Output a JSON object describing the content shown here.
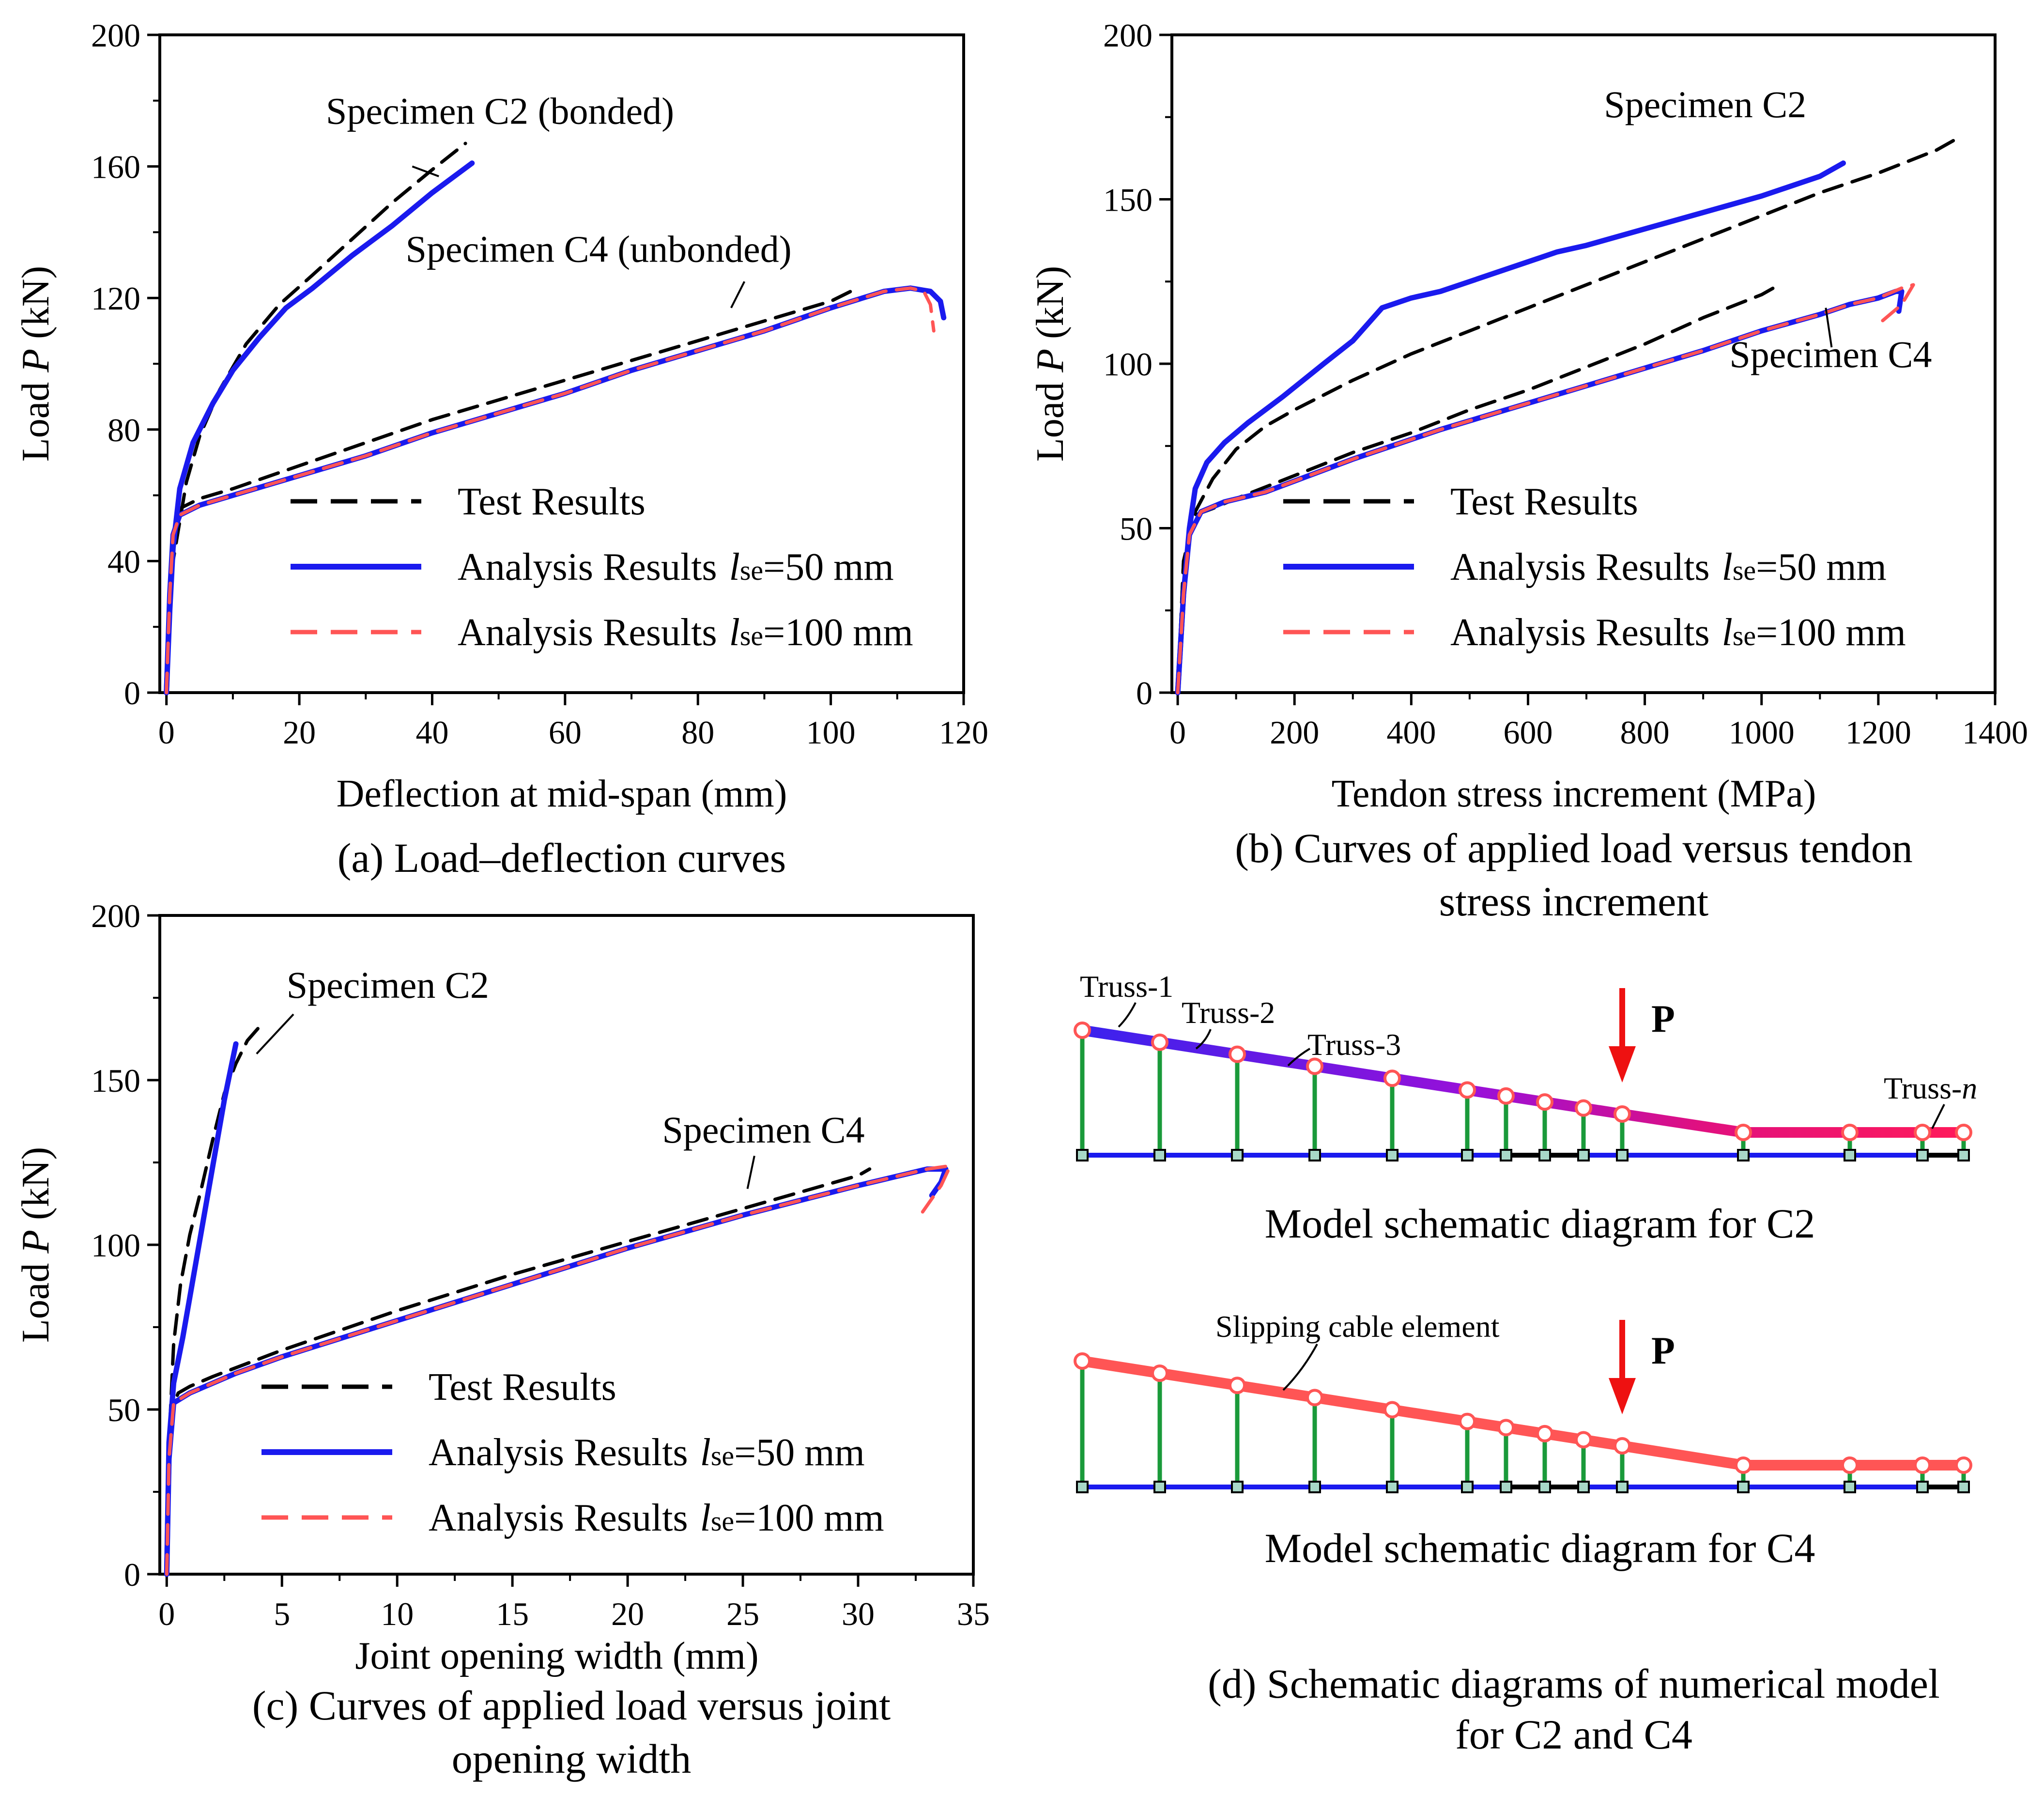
{
  "colors": {
    "test": "#000000",
    "a50": "#1a1aee",
    "a100": "#ff5555",
    "post": "#1a9a3a",
    "beam": "#1a1aee",
    "node": "#a8d8c8",
    "arrow": "#ee1111"
  },
  "legend": {
    "test": "Test Results",
    "a50_prefix": "Analysis Results",
    "a50_l": "l",
    "a50_sub": "se",
    "a50_val": "=50 mm",
    "a100_prefix": "Analysis Results",
    "a100_l": "l",
    "a100_sub": "se",
    "a100_val": "=100 mm"
  },
  "chart_data": [
    {
      "id": "a",
      "type": "line",
      "caption": "(a) Load–deflection curves",
      "xlabel": "Deflection at mid-span (mm)",
      "ylabel_prefix": "Load ",
      "ylabel_var": "P",
      "ylabel_suffix": " (kN)",
      "xlim": [
        -1,
        120
      ],
      "ylim": [
        0,
        200
      ],
      "xticks": [
        0,
        20,
        40,
        60,
        80,
        100,
        120
      ],
      "yticks": [
        0,
        40,
        80,
        120,
        160,
        200
      ],
      "annotations": [
        {
          "text": "Specimen C2 (bonded)",
          "x": 24,
          "y": 173,
          "lx1": 37,
          "ly1": 160,
          "lx2": 41,
          "ly2": 157
        },
        {
          "text": "Specimen C4 (unbonded)",
          "x": 36,
          "y": 131,
          "lx1": 87,
          "ly1": 125,
          "lx2": 85,
          "ly2": 117
        }
      ],
      "series": [
        {
          "name": "Test Results C2",
          "style": "test",
          "x": [
            0,
            1,
            3,
            5,
            8,
            12,
            17,
            22,
            28,
            34,
            40,
            45
          ],
          "y": [
            0,
            40,
            64,
            78,
            92,
            106,
            118,
            127,
            138,
            149,
            159,
            167
          ]
        },
        {
          "name": "Test Results C4",
          "style": "test",
          "x": [
            0,
            1,
            2,
            5,
            10,
            20,
            30,
            40,
            50,
            60,
            70,
            80,
            90,
            100,
            104
          ],
          "y": [
            0,
            40,
            56,
            59,
            62,
            69,
            76,
            83,
            89,
            95,
            101,
            107,
            113,
            119,
            123
          ]
        },
        {
          "name": "Analysis C2 lse=50",
          "style": "a50",
          "x": [
            0,
            0.5,
            1,
            2,
            4,
            7,
            10,
            14,
            18,
            22,
            28,
            34,
            40,
            46
          ],
          "y": [
            0,
            25,
            44,
            62,
            76,
            88,
            98,
            108,
            117,
            123,
            133,
            142,
            152,
            161
          ]
        },
        {
          "name": "Analysis C4 lse=50",
          "style": "a50",
          "x": [
            0,
            0.5,
            1,
            2,
            5,
            10,
            20,
            30,
            40,
            50,
            60,
            70,
            80,
            90,
            100,
            108,
            112,
            115,
            116.5,
            117
          ],
          "y": [
            0,
            30,
            48,
            54,
            57,
            60,
            66,
            72,
            79,
            85,
            91,
            98,
            104,
            110,
            117,
            122,
            123,
            122,
            119,
            114
          ]
        },
        {
          "name": "Analysis C4 lse=100",
          "style": "a100",
          "x": [
            0,
            0.5,
            1,
            2,
            5,
            10,
            20,
            30,
            40,
            50,
            60,
            70,
            80,
            90,
            100,
            108,
            112,
            114,
            115,
            115.5
          ],
          "y": [
            0,
            30,
            48,
            54,
            57,
            60,
            66,
            72,
            79,
            85,
            91,
            98,
            104,
            110,
            117,
            122,
            123,
            122,
            118,
            110
          ]
        }
      ]
    },
    {
      "id": "b",
      "type": "line",
      "caption": "(b) Curves of applied load versus tendon",
      "caption2": "stress increment",
      "xlabel": "Tendon stress increment (MPa)",
      "ylabel_prefix": "Load ",
      "ylabel_var": "P",
      "ylabel_suffix": " (kN)",
      "xlim": [
        -10,
        1400
      ],
      "ylim": [
        0,
        200
      ],
      "xticks": [
        0,
        200,
        400,
        600,
        800,
        1000,
        1200,
        1400
      ],
      "yticks": [
        0,
        50,
        100,
        150,
        200
      ],
      "annotations": [
        {
          "text": "Specimen C2",
          "x": 730,
          "y": 175,
          "lx1": 0,
          "ly1": 0,
          "lx2": 0,
          "ly2": 0
        },
        {
          "text": "Specimen C4",
          "x": 945,
          "y": 99,
          "lx1": 1120,
          "ly1": 105,
          "lx2": 1110,
          "ly2": 117
        }
      ],
      "series": [
        {
          "name": "Test Results C2",
          "style": "test",
          "x": [
            0,
            10,
            30,
            60,
            100,
            150,
            200,
            300,
            400,
            500,
            600,
            700,
            800,
            900,
            1000,
            1100,
            1200,
            1300,
            1340
          ],
          "y": [
            0,
            40,
            55,
            65,
            74,
            81,
            86,
            95,
            103,
            110,
            117,
            124,
            131,
            138,
            145,
            152,
            158,
            165,
            169
          ]
        },
        {
          "name": "Test Results C4",
          "style": "test",
          "x": [
            0,
            10,
            30,
            60,
            100,
            200,
            300,
            400,
            500,
            600,
            700,
            800,
            900,
            1000,
            1030
          ],
          "y": [
            0,
            40,
            54,
            56,
            59,
            66,
            73,
            79,
            86,
            92,
            99,
            106,
            114,
            121,
            124
          ]
        },
        {
          "name": "Analysis C2 lse=50",
          "style": "a50",
          "x": [
            0,
            10,
            20,
            30,
            50,
            80,
            120,
            180,
            250,
            300,
            350,
            400,
            450,
            500,
            600,
            650,
            700,
            800,
            900,
            1000,
            1100,
            1140
          ],
          "y": [
            0,
            30,
            50,
            62,
            70,
            76,
            82,
            90,
            100,
            107,
            117,
            120,
            122,
            125,
            131,
            134,
            136,
            141,
            146,
            151,
            157,
            161
          ]
        },
        {
          "name": "Analysis C4 lse=50",
          "style": "a50",
          "x": [
            0,
            10,
            20,
            40,
            80,
            150,
            300,
            450,
            600,
            750,
            900,
            1000,
            1100,
            1150,
            1200,
            1230,
            1240,
            1235
          ],
          "y": [
            0,
            30,
            48,
            55,
            58,
            61,
            71,
            80,
            88,
            96,
            104,
            110,
            115,
            118,
            120,
            122,
            122,
            116
          ]
        },
        {
          "name": "Analysis C4 lse=100",
          "style": "a100",
          "x": [
            0,
            10,
            20,
            40,
            80,
            150,
            300,
            450,
            600,
            750,
            900,
            1000,
            1100,
            1150,
            1200,
            1240,
            1260,
            1240,
            1200
          ],
          "y": [
            0,
            30,
            48,
            55,
            58,
            61,
            71,
            80,
            88,
            96,
            104,
            110,
            115,
            118,
            120,
            123,
            124,
            118,
            112
          ]
        }
      ]
    },
    {
      "id": "c",
      "type": "line",
      "caption": "(c)  Curves of applied load versus joint",
      "caption2": "opening  width",
      "xlabel": "Joint opening width (mm)",
      "ylabel_prefix": "Load ",
      "ylabel_var": "P",
      "ylabel_suffix": " (kN)",
      "xlim": [
        -0.3,
        35
      ],
      "ylim": [
        0,
        200
      ],
      "xticks": [
        0,
        5,
        10,
        15,
        20,
        25,
        30,
        35
      ],
      "yticks": [
        0,
        50,
        100,
        150,
        200
      ],
      "annotations": [
        {
          "text": "Specimen C2",
          "x": 5.2,
          "y": 175,
          "lx1": 5.5,
          "ly1": 170,
          "lx2": 3.9,
          "ly2": 158
        },
        {
          "text": "Specimen C4",
          "x": 21.5,
          "y": 131,
          "lx1": 25.5,
          "ly1": 127,
          "lx2": 25.2,
          "ly2": 117
        }
      ],
      "series": [
        {
          "name": "Test Results C2",
          "style": "test",
          "x": [
            0,
            0.1,
            0.3,
            0.6,
            1.0,
            1.5,
            2.0,
            2.5,
            3.0,
            3.5,
            4.0
          ],
          "y": [
            0,
            40,
            70,
            88,
            103,
            117,
            132,
            146,
            155,
            162,
            166
          ]
        },
        {
          "name": "Test Results C4",
          "style": "test",
          "x": [
            0,
            0.2,
            0.5,
            1,
            2,
            5,
            10,
            15,
            20,
            25,
            30,
            30.5
          ],
          "y": [
            0,
            50,
            55,
            57,
            60,
            68,
            80,
            91,
            101,
            111,
            121,
            123
          ]
        },
        {
          "name": "Analysis C2 lse=50",
          "style": "a50",
          "x": [
            0,
            0.1,
            0.3,
            0.7,
            1.0,
            1.5,
            2.0,
            2.5,
            3.0
          ],
          "y": [
            0,
            40,
            58,
            72,
            84,
            104,
            124,
            144,
            161
          ]
        },
        {
          "name": "Analysis C4 lse=50",
          "style": "a50",
          "x": [
            0,
            0.1,
            0.3,
            1,
            3,
            5,
            10,
            15,
            20,
            25,
            30,
            33,
            33.8,
            33.6,
            33.2
          ],
          "y": [
            0,
            35,
            52,
            55,
            61,
            66,
            77,
            88,
            99,
            109,
            118,
            123,
            123,
            119,
            115
          ]
        },
        {
          "name": "Analysis C4 lse=100",
          "style": "a100",
          "x": [
            0,
            0.1,
            0.3,
            1,
            3,
            5,
            10,
            15,
            20,
            25,
            30,
            33,
            34,
            33.6,
            32.8
          ],
          "y": [
            0,
            35,
            52,
            55,
            61,
            66,
            77,
            88,
            99,
            109,
            118,
            123,
            124,
            118,
            110
          ]
        }
      ]
    }
  ],
  "diagram": {
    "c2_title": "Model schematic diagram for C2",
    "c4_title": "Model schematic diagram for C4",
    "caption": "(d) Schematic diagrams of numerical model",
    "caption2": "for C2 and C4",
    "load_label": "P",
    "truss1": "Truss-1",
    "truss2": "Truss-2",
    "truss3": "Truss-3",
    "trussn_prefix": "Truss-",
    "trussn_var": "n",
    "slip_label": "Slipping cable element"
  }
}
